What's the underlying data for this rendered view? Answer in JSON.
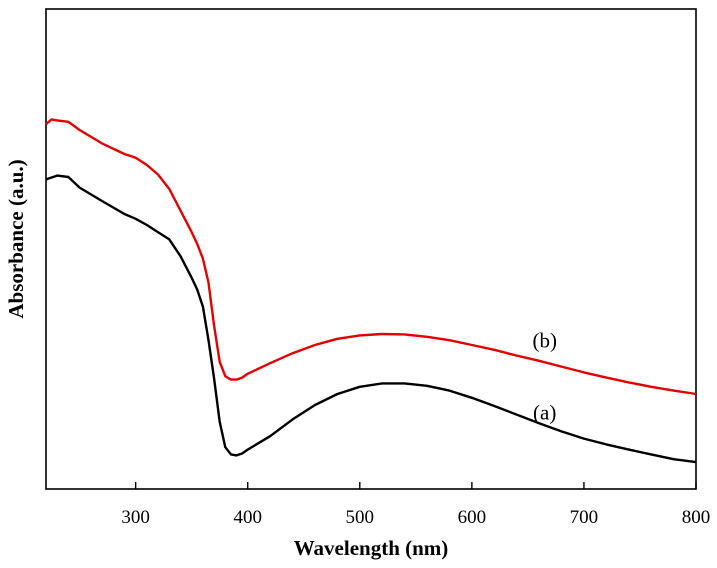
{
  "chart_data": {
    "type": "line",
    "xlabel": "Wavelength (nm)",
    "ylabel": "Absorbance (a.u.)",
    "xlim": [
      220,
      800
    ],
    "ylim": [
      0,
      1
    ],
    "x_ticks": [
      300,
      400,
      500,
      600,
      700,
      800
    ],
    "y_ticks_shown": false,
    "grid": false,
    "legend": "none",
    "series": [
      {
        "name": "(a)",
        "color": "#000000",
        "points": [
          [
            220,
            0.645
          ],
          [
            230,
            0.653
          ],
          [
            240,
            0.65
          ],
          [
            250,
            0.628
          ],
          [
            270,
            0.6
          ],
          [
            290,
            0.573
          ],
          [
            300,
            0.563
          ],
          [
            310,
            0.55
          ],
          [
            320,
            0.535
          ],
          [
            330,
            0.52
          ],
          [
            340,
            0.485
          ],
          [
            350,
            0.44
          ],
          [
            355,
            0.415
          ],
          [
            360,
            0.38
          ],
          [
            365,
            0.31
          ],
          [
            370,
            0.23
          ],
          [
            375,
            0.14
          ],
          [
            380,
            0.087
          ],
          [
            385,
            0.072
          ],
          [
            390,
            0.07
          ],
          [
            395,
            0.074
          ],
          [
            400,
            0.082
          ],
          [
            420,
            0.11
          ],
          [
            440,
            0.145
          ],
          [
            460,
            0.175
          ],
          [
            480,
            0.198
          ],
          [
            500,
            0.213
          ],
          [
            520,
            0.22
          ],
          [
            540,
            0.22
          ],
          [
            560,
            0.215
          ],
          [
            580,
            0.205
          ],
          [
            600,
            0.19
          ],
          [
            620,
            0.173
          ],
          [
            640,
            0.155
          ],
          [
            660,
            0.137
          ],
          [
            680,
            0.12
          ],
          [
            700,
            0.105
          ],
          [
            720,
            0.093
          ],
          [
            740,
            0.082
          ],
          [
            760,
            0.072
          ],
          [
            780,
            0.062
          ],
          [
            800,
            0.056
          ]
        ]
      },
      {
        "name": "(b)",
        "color": "#e00000",
        "points": [
          [
            220,
            0.76
          ],
          [
            225,
            0.77
          ],
          [
            230,
            0.768
          ],
          [
            240,
            0.765
          ],
          [
            250,
            0.748
          ],
          [
            270,
            0.72
          ],
          [
            290,
            0.698
          ],
          [
            300,
            0.69
          ],
          [
            310,
            0.675
          ],
          [
            320,
            0.655
          ],
          [
            330,
            0.625
          ],
          [
            340,
            0.58
          ],
          [
            350,
            0.535
          ],
          [
            355,
            0.51
          ],
          [
            360,
            0.48
          ],
          [
            365,
            0.43
          ],
          [
            370,
            0.34
          ],
          [
            375,
            0.265
          ],
          [
            380,
            0.235
          ],
          [
            385,
            0.228
          ],
          [
            390,
            0.228
          ],
          [
            395,
            0.232
          ],
          [
            400,
            0.24
          ],
          [
            420,
            0.262
          ],
          [
            440,
            0.283
          ],
          [
            460,
            0.3
          ],
          [
            480,
            0.313
          ],
          [
            500,
            0.32
          ],
          [
            520,
            0.323
          ],
          [
            540,
            0.322
          ],
          [
            560,
            0.317
          ],
          [
            580,
            0.31
          ],
          [
            600,
            0.3
          ],
          [
            620,
            0.29
          ],
          [
            640,
            0.278
          ],
          [
            660,
            0.267
          ],
          [
            680,
            0.255
          ],
          [
            700,
            0.243
          ],
          [
            720,
            0.232
          ],
          [
            740,
            0.222
          ],
          [
            760,
            0.213
          ],
          [
            780,
            0.205
          ],
          [
            800,
            0.198
          ]
        ]
      }
    ],
    "annotations": [
      {
        "text": "(a)",
        "x": 665,
        "y": 0.145
      },
      {
        "text": "(b)",
        "x": 665,
        "y": 0.295
      }
    ]
  }
}
